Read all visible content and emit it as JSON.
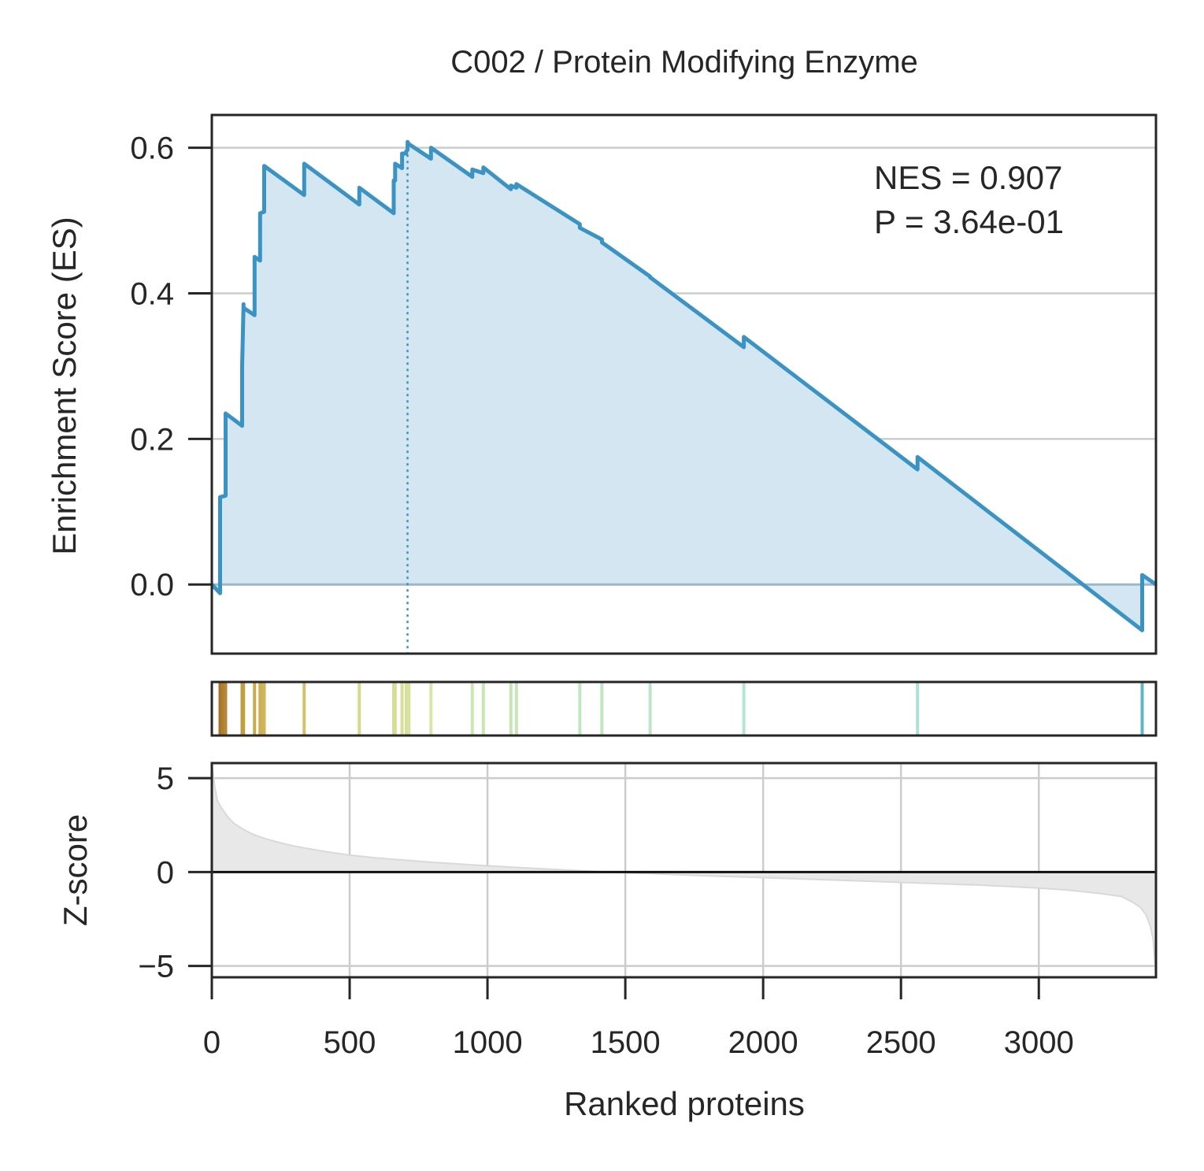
{
  "chart_data": {
    "type": "line",
    "title": "C002 / Protein Modifying Enzyme",
    "annotation": {
      "nes": "NES = 0.907",
      "p": "P = 3.64e-01"
    },
    "es_panel": {
      "ylabel": "Enrichment Score (ES)",
      "ylim": [
        -0.095,
        0.645
      ],
      "yticks": [
        0.0,
        0.2,
        0.4,
        0.6
      ],
      "ytick_labels": [
        "0.0",
        "0.2",
        "0.4",
        "0.6"
      ],
      "grid": "horizontal",
      "peak_rank": 710,
      "line_color": "#3a93c3",
      "fill_color": "#d4e6f1",
      "series": [
        {
          "x": [
            0,
            30,
            30,
            50,
            50,
            110,
            110,
            115,
            115,
            155,
            155,
            175,
            175,
            190,
            190,
            335,
            335,
            535,
            535,
            660,
            660,
            665,
            665,
            690,
            690,
            705,
            705,
            710,
            710,
            715,
            715,
            795,
            795,
            945,
            945,
            985,
            985,
            1085,
            1085,
            1105,
            1105,
            1335,
            1335,
            1415,
            1415,
            1590,
            1590,
            1930,
            1930,
            2560,
            2560,
            3375,
            3375,
            3425
          ],
          "y": [
            0.0,
            -0.012,
            0.12,
            0.122,
            0.235,
            0.218,
            0.3,
            0.385,
            0.38,
            0.37,
            0.45,
            0.445,
            0.51,
            0.512,
            0.575,
            0.535,
            0.578,
            0.522,
            0.545,
            0.51,
            0.555,
            0.555,
            0.578,
            0.572,
            0.592,
            0.592,
            0.595,
            0.597,
            0.608,
            0.605,
            0.605,
            0.585,
            0.6,
            0.56,
            0.57,
            0.565,
            0.573,
            0.543,
            0.548,
            0.545,
            0.55,
            0.495,
            0.49,
            0.474,
            0.47,
            0.423,
            0.422,
            0.326,
            0.34,
            0.158,
            0.175,
            -0.063,
            0.013,
            0.0
          ]
        }
      ]
    },
    "hits_panel": {
      "hit_ranks": [
        30,
        35,
        40,
        50,
        110,
        115,
        155,
        175,
        180,
        190,
        335,
        535,
        660,
        665,
        690,
        705,
        710,
        715,
        795,
        945,
        985,
        1085,
        1105,
        1335,
        1415,
        1590,
        1930,
        2560,
        3375
      ],
      "hit_colors": [
        "#a8742a",
        "#a8742a",
        "#b0802e",
        "#b5873a",
        "#c09c3e",
        "#c2a040",
        "#c7ac4c",
        "#caaf52",
        "#ccb255",
        "#cfb65a",
        "#d2c06a",
        "#d6d88c",
        "#d6dc94",
        "#d6dd96",
        "#d8df9a",
        "#d8e09c",
        "#d9e09e",
        "#d9e0a0",
        "#d4e8a8",
        "#cce7b0",
        "#cae6b2",
        "#c7e6b5",
        "#c6e6b7",
        "#c2e6bf",
        "#c0e6c2",
        "#bde6c8",
        "#b5e6d0",
        "#a8e3d8",
        "#62b4cc"
      ]
    },
    "zscore_panel": {
      "ylabel": "Z-score",
      "ylim": [
        -5.6,
        5.8
      ],
      "yticks": [
        -5,
        0,
        5
      ],
      "ytick_labels": [
        "−5",
        "0",
        "5"
      ],
      "grid": "both",
      "fill_color": "#e8e8e8",
      "x": [
        0,
        10,
        20,
        40,
        60,
        80,
        100,
        130,
        160,
        200,
        250,
        300,
        350,
        400,
        500,
        600,
        800,
        1000,
        1200,
        1400,
        1500,
        1600,
        1800,
        2000,
        2200,
        2400,
        2600,
        2800,
        3000,
        3100,
        3200,
        3300,
        3340,
        3370,
        3390,
        3405,
        3415,
        3420,
        3425
      ],
      "y": [
        5.8,
        4.6,
        3.8,
        3.3,
        2.9,
        2.6,
        2.4,
        2.15,
        1.95,
        1.75,
        1.55,
        1.38,
        1.25,
        1.12,
        0.9,
        0.75,
        0.52,
        0.33,
        0.17,
        0.03,
        -0.03,
        -0.09,
        -0.2,
        -0.3,
        -0.4,
        -0.5,
        -0.6,
        -0.7,
        -0.85,
        -0.95,
        -1.1,
        -1.3,
        -1.6,
        -1.9,
        -2.3,
        -2.9,
        -3.6,
        -4.6,
        -5.6
      ]
    },
    "xlabel": "Ranked proteins",
    "xlim": [
      0,
      3425
    ],
    "xticks": [
      0,
      500,
      1000,
      1500,
      2000,
      2500,
      3000
    ],
    "xtick_labels": [
      "0",
      "500",
      "1000",
      "1500",
      "2000",
      "2500",
      "3000"
    ]
  }
}
